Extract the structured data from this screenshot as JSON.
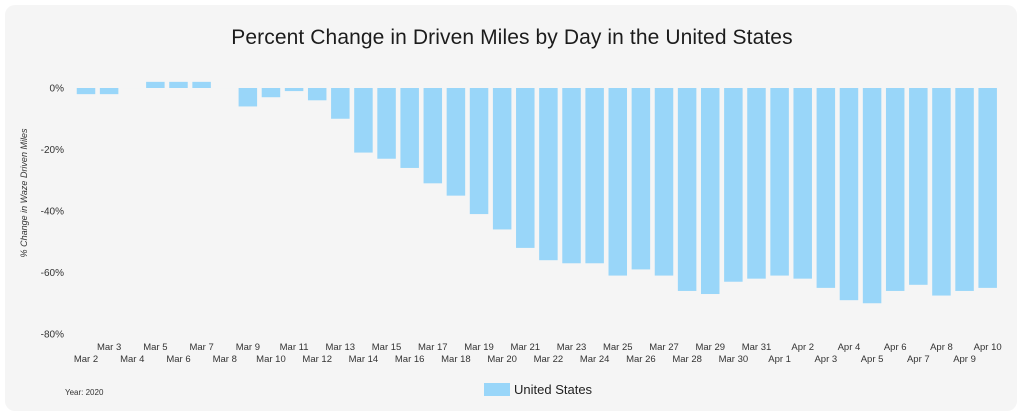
{
  "chart_data": {
    "type": "bar",
    "title": "Percent Change in Driven Miles by Day in the United States",
    "ylabel": "% Change in Waze Driven Miles",
    "xlabel": "",
    "ylim": [
      -80,
      0
    ],
    "yticks": [
      {
        "value": 0,
        "label": "0%"
      },
      {
        "value": -20,
        "label": "-20%"
      },
      {
        "value": -40,
        "label": "-40%"
      },
      {
        "value": -60,
        "label": "-60%"
      },
      {
        "value": -80,
        "label": "-80%"
      }
    ],
    "grid": false,
    "legend_position": "bottom-center",
    "categories": [
      "Mar 2",
      "Mar 3",
      "Mar 4",
      "Mar 5",
      "Mar 6",
      "Mar 7",
      "Mar 8",
      "Mar 9",
      "Mar 10",
      "Mar 11",
      "Mar 12",
      "Mar 13",
      "Mar 14",
      "Mar 15",
      "Mar 16",
      "Mar 17",
      "Mar 18",
      "Mar 19",
      "Mar 20",
      "Mar 21",
      "Mar 22",
      "Mar 23",
      "Mar 24",
      "Mar 25",
      "Mar 26",
      "Mar 27",
      "Mar 28",
      "Mar 29",
      "Mar 30",
      "Mar 31",
      "Apr 1",
      "Apr 2",
      "Apr 3",
      "Apr 4",
      "Apr 5",
      "Apr 6",
      "Apr 7",
      "Apr 8",
      "Apr 9",
      "Apr 10"
    ],
    "series": [
      {
        "name": "United States",
        "color": "#99d6f9",
        "values": [
          -2,
          -2,
          0,
          2,
          2,
          2,
          0,
          -6,
          -3,
          -1,
          -4,
          -10,
          -21,
          -23,
          -26,
          -31,
          -35,
          -41,
          -46,
          -52,
          -56,
          -57,
          -57,
          -61,
          -59,
          -61,
          -66,
          -67,
          -63,
          -62,
          -61,
          -62,
          -65,
          -69,
          -70,
          -66,
          -64,
          -67.5,
          -66,
          -65
        ]
      }
    ],
    "note": "Year: 2020"
  }
}
